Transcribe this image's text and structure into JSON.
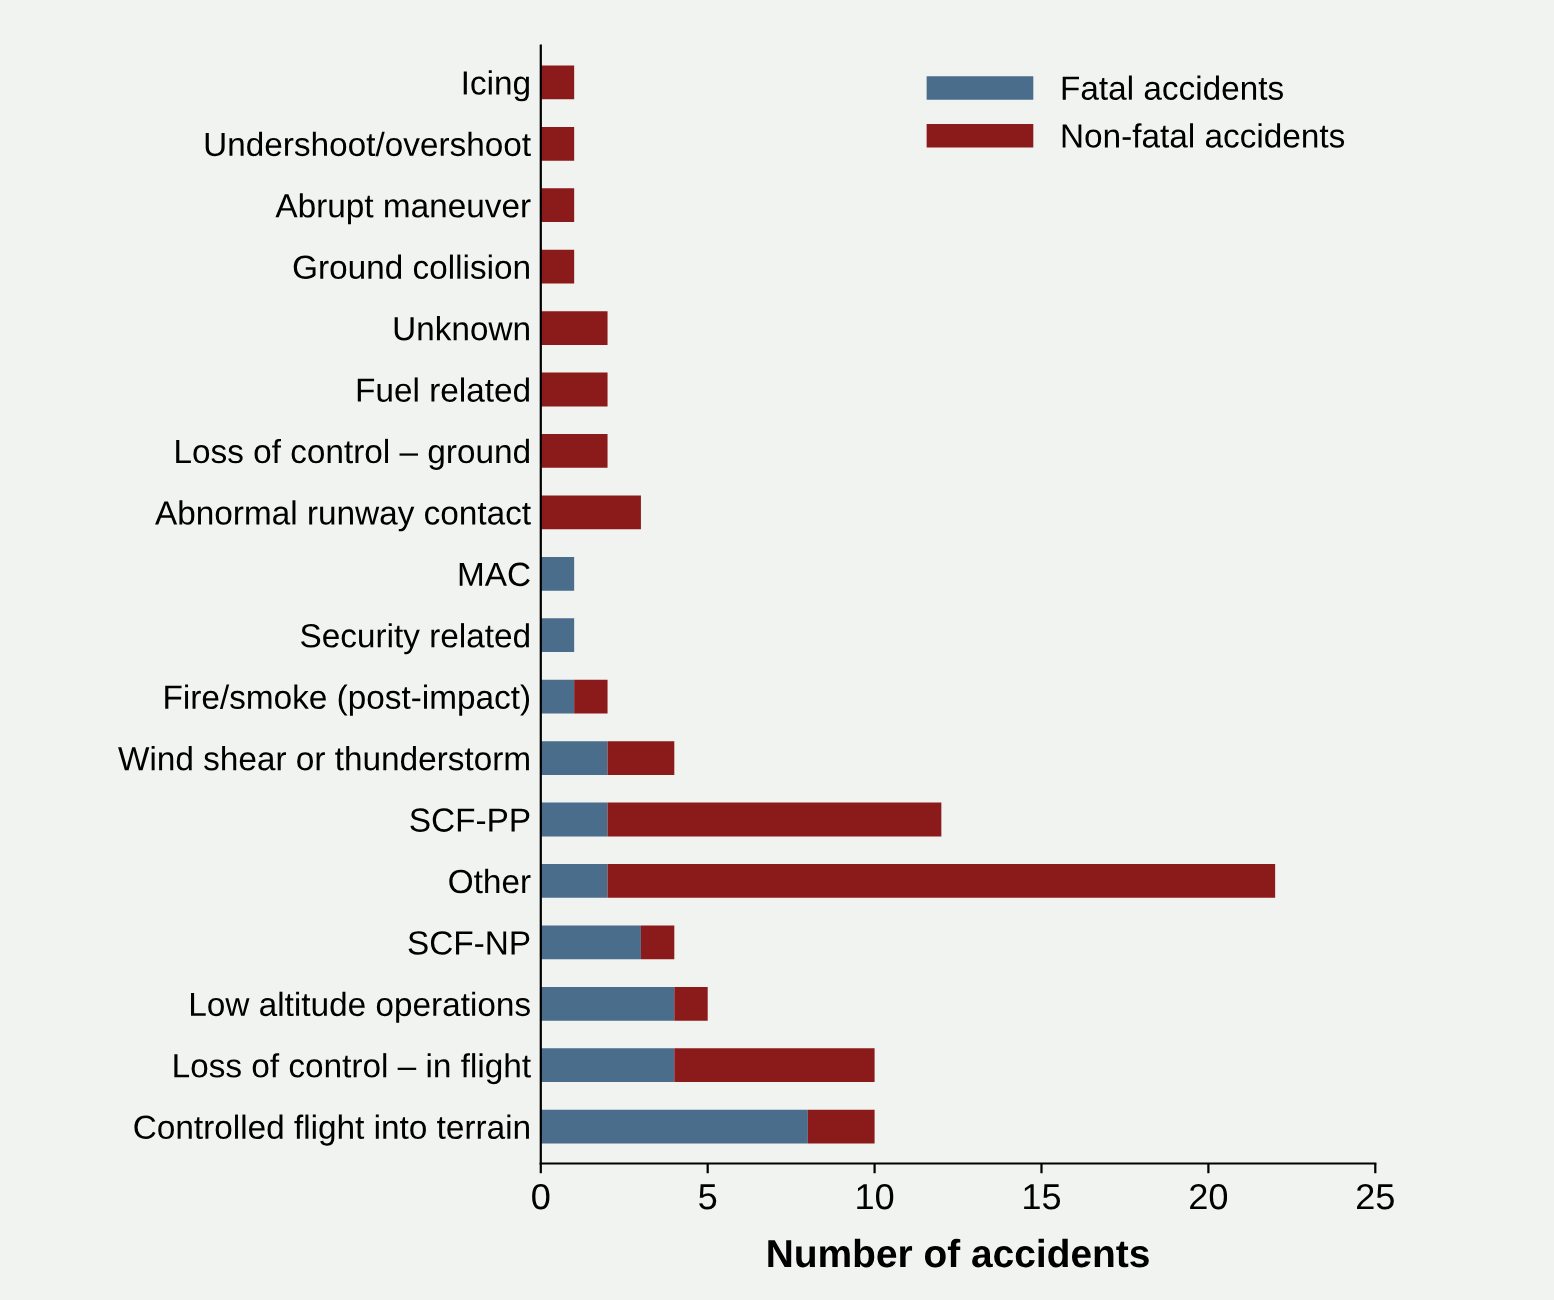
{
  "chart_data": {
    "type": "bar",
    "orientation": "horizontal",
    "stacked": true,
    "categories": [
      "Icing",
      "Undershoot/overshoot",
      "Abrupt maneuver",
      "Ground collision",
      "Unknown",
      "Fuel related",
      "Loss of control – ground",
      "Abnormal runway contact",
      "MAC",
      "Security related",
      "Fire/smoke (post-impact)",
      "Wind shear or thunderstorm",
      "SCF-PP",
      "Other",
      "SCF-NP",
      "Low altitude operations",
      "Loss of control – in flight",
      "Controlled flight into terrain"
    ],
    "series": [
      {
        "name": "Fatal accidents",
        "color": "#4a6d8c",
        "values": [
          0,
          0,
          0,
          0,
          0,
          0,
          0,
          0,
          1,
          1,
          1,
          2,
          2,
          2,
          3,
          4,
          4,
          8
        ]
      },
      {
        "name": "Non-fatal accidents",
        "color": "#8b1a1a",
        "values": [
          1,
          1,
          1,
          1,
          2,
          2,
          2,
          3,
          0,
          0,
          1,
          2,
          10,
          20,
          1,
          1,
          6,
          2
        ]
      }
    ],
    "xlabel": "Number of accidents",
    "xlim": [
      0,
      25
    ],
    "xticks": [
      0,
      5,
      10,
      15,
      20,
      25
    ],
    "grid": false,
    "legend": "top right"
  }
}
